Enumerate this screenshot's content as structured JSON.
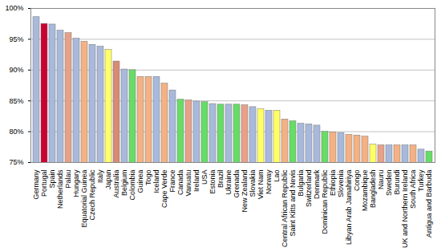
{
  "chart_data": {
    "type": "bar",
    "categories": [
      "Germany",
      "Portugal",
      "Spain",
      "Netherlands",
      "Palau",
      "Hungary",
      "Equatorial Guinea",
      "Czech Republic",
      "Italy",
      "Japan",
      "Australia",
      "Belgium",
      "Colombia",
      "Guinea",
      "Togo",
      "Iceland",
      "Cape Verde",
      "France",
      "Canada",
      "Vanuatu",
      "Ireland",
      "USA",
      "Estonia",
      "Brazil",
      "Ukraine",
      "Grenada",
      "New Zealand",
      "Slovakia",
      "Viet Nam",
      "Norway",
      "Lao",
      "Central African Republic",
      "Saint Kitts and Nevis",
      "Bulgaria",
      "Switzerland",
      "Denmark",
      "Dominican Republic",
      "Ethiopia",
      "Slovenia",
      "Libyan Arab Jamahiriya",
      "Congo",
      "Mozambique",
      "Bangladesh",
      "Nauru",
      "Sweden",
      "Burundi",
      "UK and Northern Ireland",
      "South Africa",
      "Turkey",
      "Antigua and Barbuda"
    ],
    "values": [
      98.6,
      97.5,
      97.4,
      96.4,
      96.0,
      95.1,
      94.6,
      94.1,
      93.8,
      93.3,
      91.4,
      90.1,
      90.0,
      88.9,
      88.9,
      88.9,
      87.8,
      86.7,
      85.2,
      85.1,
      84.9,
      84.8,
      84.5,
      84.4,
      84.4,
      84.4,
      84.3,
      84.0,
      83.7,
      83.4,
      83.4,
      82.0,
      81.7,
      81.3,
      81.2,
      81.0,
      80.0,
      79.9,
      79.8,
      79.5,
      79.4,
      79.2,
      77.9,
      77.8,
      77.8,
      77.8,
      77.8,
      77.8,
      77.1,
      76.8
    ],
    "colors": [
      "#a8b9dc",
      "#cc0033",
      "#a8b9dc",
      "#a8b9dc",
      "#e8a088",
      "#a8b9dc",
      "#f4b183",
      "#a8b9dc",
      "#a8b9dc",
      "#ffff66",
      "#d98a72",
      "#a8b9dc",
      "#66dd66",
      "#f4b183",
      "#f4b183",
      "#a8b9dc",
      "#f4b183",
      "#a8b9dc",
      "#66dd66",
      "#e8a088",
      "#a8b9dc",
      "#66dd66",
      "#a8b9dc",
      "#66dd66",
      "#a8b9dc",
      "#66dd66",
      "#e8a088",
      "#a8b9dc",
      "#ffff66",
      "#a8b9dc",
      "#ffff66",
      "#f4b183",
      "#66dd66",
      "#a8b9dc",
      "#a8b9dc",
      "#a8b9dc",
      "#66dd66",
      "#f4b183",
      "#a8b9dc",
      "#f4b183",
      "#f4b183",
      "#f4b183",
      "#ffff66",
      "#e8a088",
      "#a8b9dc",
      "#f4b183",
      "#a8b9dc",
      "#f4b183",
      "#a8b9dc",
      "#66dd66"
    ],
    "ylim": [
      75,
      100
    ],
    "yticks": [
      {
        "value": 75,
        "label": "75%"
      },
      {
        "value": 80,
        "label": "80%"
      },
      {
        "value": 85,
        "label": "85%"
      },
      {
        "value": 90,
        "label": "90%"
      },
      {
        "value": 95,
        "label": "95%"
      },
      {
        "value": 100,
        "label": "100%"
      }
    ],
    "grid": true
  }
}
